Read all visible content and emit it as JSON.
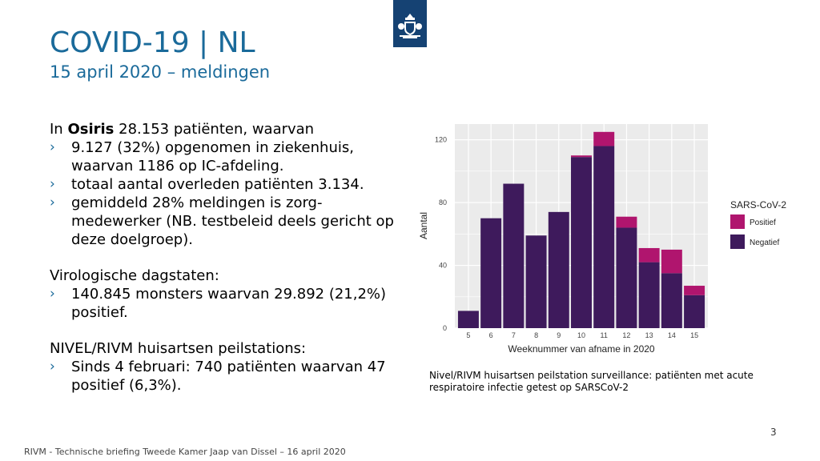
{
  "slide": {
    "title": "COVID-19 | NL",
    "subtitle": "15 april 2020 – meldingen",
    "intro_prefix": "In ",
    "intro_bold": "Osiris",
    "intro_rest": " 28.153 patiënten, waarvan",
    "osiris_bullets": [
      "9.127 (32%) opgenomen in ziekenhuis, waarvan 1186 op IC-afdeling.",
      "totaal aantal overleden patiënten 3.134.",
      "gemiddeld 28% meldingen is zorg-medewerker (NB. testbeleid deels gericht op deze doelgroep)."
    ],
    "viro_heading": "Virologische dagstaten:",
    "viro_bullets": [
      "140.845 monsters waarvan 29.892 (21,2%) positief."
    ],
    "nivel_heading": "NIVEL/RIVM huisartsen peilstations:",
    "nivel_bullets": [
      "Sinds 4 februari: 740 patiënten waarvan 47 positief (6,3%)."
    ],
    "bullet_glyph": "›",
    "caption": "Nivel/RIVM huisartsen peilstation surveillance: patiënten met acute respiratoire infectie getest op SARSCoV-2",
    "page_number": "3",
    "footer": "RIVM - Technische briefing Tweede Kamer Jaap van Dissel – 16 april 2020",
    "logo_icon": "dutch-government-coat-of-arms"
  },
  "colors": {
    "title": "#1a6a9a",
    "logo_bg": "#154273",
    "positief": "#b0156e",
    "negatief": "#3e1a5c",
    "panel": "#ebebeb"
  },
  "chart_data": {
    "type": "bar",
    "stacked": true,
    "categories": [
      "5",
      "6",
      "7",
      "8",
      "9",
      "10",
      "11",
      "12",
      "13",
      "14",
      "15"
    ],
    "series": [
      {
        "name": "Negatief",
        "values": [
          11,
          70,
          92,
          59,
          74,
          109,
          116,
          64,
          42,
          35,
          21
        ]
      },
      {
        "name": "Positief",
        "values": [
          0,
          0,
          0,
          0,
          0,
          1,
          9,
          7,
          9,
          15,
          6
        ]
      }
    ],
    "title": "",
    "xlabel": "Weeknummer van afname in 2020",
    "ylabel": "Aantal",
    "ylim": [
      0,
      130
    ],
    "yticks": [
      0,
      40,
      80,
      120
    ],
    "legend_title": "SARS-CoV-2",
    "legend_position": "right",
    "grid": true
  }
}
